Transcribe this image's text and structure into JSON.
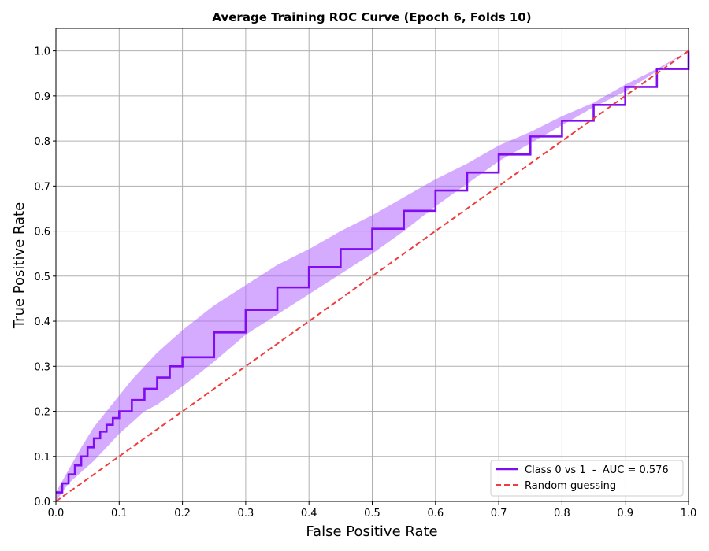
{
  "chart_data": {
    "type": "line",
    "title": "Average Training ROC Curve (Epoch 6, Folds 10)",
    "xlabel": "False Positive Rate",
    "ylabel": "True Positive Rate",
    "xlim": [
      0.0,
      1.0
    ],
    "ylim": [
      0.0,
      1.0
    ],
    "xticks": [
      "0.0",
      "0.1",
      "0.2",
      "0.3",
      "0.4",
      "0.5",
      "0.6",
      "0.7",
      "0.8",
      "0.9",
      "1.0"
    ],
    "yticks": [
      "0.0",
      "0.1",
      "0.2",
      "0.3",
      "0.4",
      "0.5",
      "0.6",
      "0.7",
      "0.8",
      "0.9",
      "1.0"
    ],
    "grid": true,
    "legend_position": "bottom-right",
    "series": [
      {
        "name": "Class 0 vs 1  -  AUC = 0.576",
        "color": "#7f0df0",
        "style": "step",
        "x": [
          0.0,
          0.01,
          0.02,
          0.03,
          0.04,
          0.05,
          0.06,
          0.07,
          0.08,
          0.09,
          0.1,
          0.12,
          0.14,
          0.16,
          0.18,
          0.2,
          0.25,
          0.3,
          0.35,
          0.4,
          0.45,
          0.5,
          0.55,
          0.6,
          0.65,
          0.7,
          0.75,
          0.8,
          0.85,
          0.9,
          0.95,
          1.0
        ],
        "y": [
          0.02,
          0.04,
          0.06,
          0.08,
          0.1,
          0.12,
          0.14,
          0.155,
          0.17,
          0.185,
          0.2,
          0.225,
          0.25,
          0.275,
          0.3,
          0.32,
          0.375,
          0.425,
          0.475,
          0.52,
          0.56,
          0.605,
          0.645,
          0.69,
          0.73,
          0.77,
          0.81,
          0.845,
          0.88,
          0.92,
          0.96,
          1.0
        ]
      },
      {
        "name": "Random guessing",
        "color": "#f03c3c",
        "style": "dashed",
        "x": [
          0.0,
          1.0
        ],
        "y": [
          0.0,
          1.0
        ]
      }
    ],
    "confidence_band": {
      "color": "#b266ff",
      "x": [
        0.0,
        0.02,
        0.04,
        0.06,
        0.08,
        0.1,
        0.12,
        0.14,
        0.16,
        0.18,
        0.2,
        0.25,
        0.3,
        0.35,
        0.4,
        0.45,
        0.5,
        0.55,
        0.6,
        0.65,
        0.7,
        0.75,
        0.8,
        0.85,
        0.9,
        0.95,
        1.0
      ],
      "lower": [
        0.0,
        0.04,
        0.065,
        0.09,
        0.12,
        0.15,
        0.175,
        0.2,
        0.215,
        0.235,
        0.255,
        0.31,
        0.37,
        0.415,
        0.46,
        0.505,
        0.55,
        0.6,
        0.655,
        0.705,
        0.755,
        0.795,
        0.835,
        0.875,
        0.91,
        0.955,
        1.0
      ],
      "upper": [
        0.02,
        0.07,
        0.12,
        0.165,
        0.2,
        0.235,
        0.27,
        0.3,
        0.33,
        0.355,
        0.38,
        0.435,
        0.48,
        0.525,
        0.56,
        0.6,
        0.635,
        0.675,
        0.715,
        0.75,
        0.79,
        0.82,
        0.855,
        0.885,
        0.925,
        0.96,
        1.0
      ]
    }
  }
}
